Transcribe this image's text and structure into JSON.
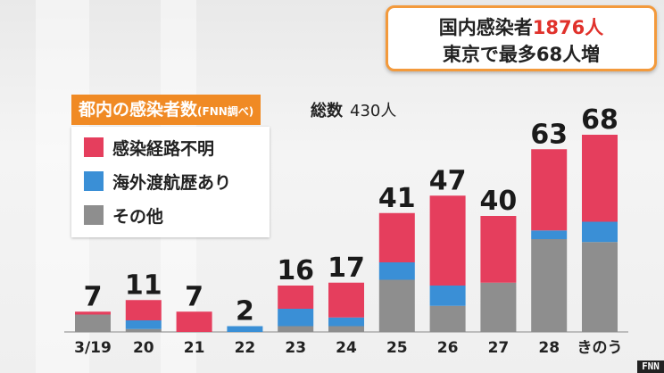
{
  "headline": {
    "line1_prefix": "国内感染者",
    "line1_value": "1876人",
    "line2": "東京で最多68人増"
  },
  "chart_header": {
    "title": "都内の感染者数",
    "source_note": "(FNN調べ)",
    "total_label": "総数",
    "total_value": "430人"
  },
  "legend": [
    {
      "label": "感染経路不明",
      "color": "#e53e5d"
    },
    {
      "label": "海外渡航歴あり",
      "color": "#3a8fd6"
    },
    {
      "label": "その他",
      "color": "#8e8e8e"
    }
  ],
  "logo": "FNN",
  "chart_data": {
    "type": "bar",
    "stacked": true,
    "categories": [
      "3/19",
      "20",
      "21",
      "22",
      "23",
      "24",
      "25",
      "26",
      "27",
      "28",
      "きのう"
    ],
    "totals": [
      7,
      11,
      7,
      2,
      16,
      17,
      41,
      47,
      40,
      63,
      68
    ],
    "series": [
      {
        "name": "感染経路不明",
        "color": "#e53e5d",
        "values": [
          1,
          7,
          7,
          0,
          8,
          12,
          17,
          31,
          23,
          28,
          30
        ]
      },
      {
        "name": "海外渡航歴あり",
        "color": "#3a8fd6",
        "values": [
          0,
          3,
          0,
          2,
          6,
          3,
          6,
          7,
          0,
          3,
          7
        ]
      },
      {
        "name": "その他",
        "color": "#8e8e8e",
        "values": [
          6,
          1,
          0,
          0,
          2,
          2,
          18,
          9,
          17,
          32,
          31
        ]
      }
    ],
    "ylim": [
      0,
      80
    ],
    "grid": false,
    "legend_position": "top-left"
  }
}
